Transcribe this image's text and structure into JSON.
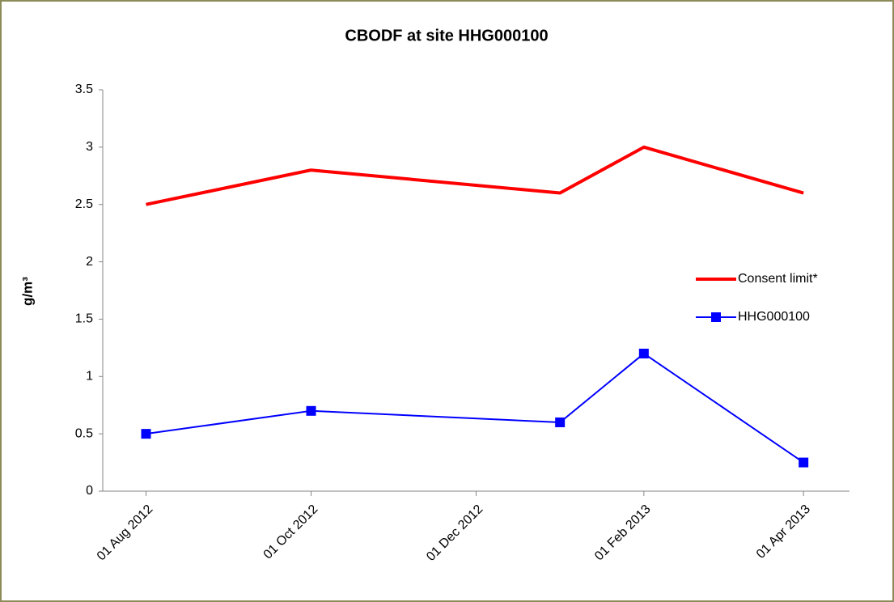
{
  "chart_data": {
    "type": "line",
    "title": "CBODF at site HHG000100",
    "ylabel": "g/m³",
    "x": [
      "2012-08-01",
      "2012-10-01",
      "2013-01-01",
      "2013-02-01",
      "2013-04-01"
    ],
    "xlim": [
      "2012-07-16",
      "2013-04-18"
    ],
    "xticks": [
      {
        "value": "2012-08-01",
        "label": "01 Aug 2012"
      },
      {
        "value": "2012-10-01",
        "label": "01 Oct 2012"
      },
      {
        "value": "2012-12-01",
        "label": "01 Dec 2012"
      },
      {
        "value": "2013-02-01",
        "label": "01 Feb 2013"
      },
      {
        "value": "2013-04-01",
        "label": "01 Apr 2013"
      }
    ],
    "ylim": [
      0,
      3.5
    ],
    "yticks": [
      0,
      0.5,
      1,
      1.5,
      2,
      2.5,
      3,
      3.5
    ],
    "grid": false,
    "legend": "right",
    "series": [
      {
        "name": "Consent limit*",
        "color": "#ff0000",
        "marker": "none",
        "values": [
          2.5,
          2.8,
          2.6,
          3.0,
          2.6
        ]
      },
      {
        "name": "HHG000100",
        "color": "#0000ff",
        "marker": "square",
        "values": [
          0.5,
          0.7,
          0.6,
          1.2,
          0.25
        ]
      }
    ]
  }
}
